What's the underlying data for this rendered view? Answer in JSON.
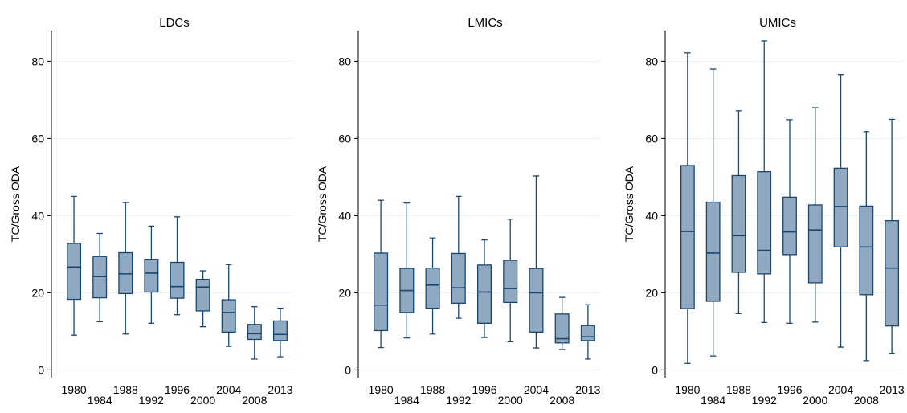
{
  "chart_data": [
    {
      "type": "box",
      "title": "LDCs",
      "ylabel": "TC/Gross ODA",
      "xlabel": "",
      "ylim": [
        -2,
        88
      ],
      "yticks": [
        0,
        20,
        40,
        60,
        80
      ],
      "categories": [
        "1980",
        "1984",
        "1988",
        "1992",
        "1996",
        "2000",
        "2004",
        "2008",
        "2013"
      ],
      "boxes": [
        {
          "min": 9.0,
          "q1": 18.3,
          "median": 26.7,
          "q3": 32.8,
          "max": 45.0
        },
        {
          "min": 12.5,
          "q1": 18.7,
          "median": 24.2,
          "q3": 29.4,
          "max": 35.4
        },
        {
          "min": 9.3,
          "q1": 19.8,
          "median": 24.9,
          "q3": 30.4,
          "max": 43.4
        },
        {
          "min": 12.1,
          "q1": 20.2,
          "median": 25.1,
          "q3": 28.7,
          "max": 37.3
        },
        {
          "min": 14.3,
          "q1": 18.6,
          "median": 21.6,
          "q3": 27.9,
          "max": 39.7
        },
        {
          "min": 11.2,
          "q1": 15.3,
          "median": 21.5,
          "q3": 23.5,
          "max": 25.7
        },
        {
          "min": 6.1,
          "q1": 9.8,
          "median": 14.9,
          "q3": 18.2,
          "max": 27.3
        },
        {
          "min": 2.8,
          "q1": 7.9,
          "median": 9.4,
          "q3": 11.8,
          "max": 16.4
        },
        {
          "min": 3.4,
          "q1": 7.6,
          "median": 9.2,
          "q3": 12.7,
          "max": 16.0
        }
      ]
    },
    {
      "type": "box",
      "title": "LMICs",
      "ylabel": "TC/Gross ODA",
      "xlabel": "",
      "ylim": [
        -2,
        88
      ],
      "yticks": [
        0,
        20,
        40,
        60,
        80
      ],
      "categories": [
        "1980",
        "1984",
        "1988",
        "1992",
        "1996",
        "2000",
        "2004",
        "2008",
        "2013"
      ],
      "boxes": [
        {
          "min": 5.8,
          "q1": 10.2,
          "median": 16.8,
          "q3": 30.3,
          "max": 44.0
        },
        {
          "min": 8.3,
          "q1": 14.9,
          "median": 20.6,
          "q3": 26.3,
          "max": 43.3
        },
        {
          "min": 9.3,
          "q1": 16.0,
          "median": 22.0,
          "q3": 26.4,
          "max": 34.2
        },
        {
          "min": 13.4,
          "q1": 17.3,
          "median": 21.3,
          "q3": 30.2,
          "max": 45.0
        },
        {
          "min": 8.4,
          "q1": 12.1,
          "median": 20.2,
          "q3": 27.2,
          "max": 33.7
        },
        {
          "min": 7.3,
          "q1": 17.5,
          "median": 21.1,
          "q3": 28.4,
          "max": 39.1
        },
        {
          "min": 5.7,
          "q1": 9.8,
          "median": 20.0,
          "q3": 26.3,
          "max": 50.3
        },
        {
          "min": 5.3,
          "q1": 7.0,
          "median": 8.1,
          "q3": 14.5,
          "max": 18.8
        },
        {
          "min": 2.8,
          "q1": 7.6,
          "median": 8.6,
          "q3": 11.5,
          "max": 16.9
        }
      ]
    },
    {
      "type": "box",
      "title": "UMICs",
      "ylabel": "TC/Gross ODA",
      "xlabel": "",
      "ylim": [
        -2,
        88
      ],
      "yticks": [
        0,
        20,
        40,
        60,
        80
      ],
      "categories": [
        "1980",
        "1984",
        "1988",
        "1992",
        "1996",
        "2000",
        "2004",
        "2008",
        "2013"
      ],
      "boxes": [
        {
          "min": 1.7,
          "q1": 15.9,
          "median": 35.9,
          "q3": 53.0,
          "max": 82.2
        },
        {
          "min": 3.6,
          "q1": 17.8,
          "median": 30.3,
          "q3": 43.5,
          "max": 78.0
        },
        {
          "min": 14.6,
          "q1": 25.3,
          "median": 34.8,
          "q3": 50.4,
          "max": 67.2
        },
        {
          "min": 12.3,
          "q1": 24.9,
          "median": 31.0,
          "q3": 51.4,
          "max": 85.3
        },
        {
          "min": 12.1,
          "q1": 29.9,
          "median": 35.8,
          "q3": 44.8,
          "max": 64.9
        },
        {
          "min": 12.4,
          "q1": 22.6,
          "median": 36.3,
          "q3": 42.8,
          "max": 68.0
        },
        {
          "min": 5.9,
          "q1": 31.9,
          "median": 42.4,
          "q3": 52.3,
          "max": 76.6
        },
        {
          "min": 2.4,
          "q1": 19.5,
          "median": 31.9,
          "q3": 42.5,
          "max": 61.8
        },
        {
          "min": 4.3,
          "q1": 11.4,
          "median": 26.4,
          "q3": 38.7,
          "max": 65.0
        }
      ]
    }
  ],
  "colors": {
    "box_fill": "#90a8c0",
    "box_stroke": "#1a476f",
    "axis": "#000000",
    "grid": "#eaf2f3"
  }
}
